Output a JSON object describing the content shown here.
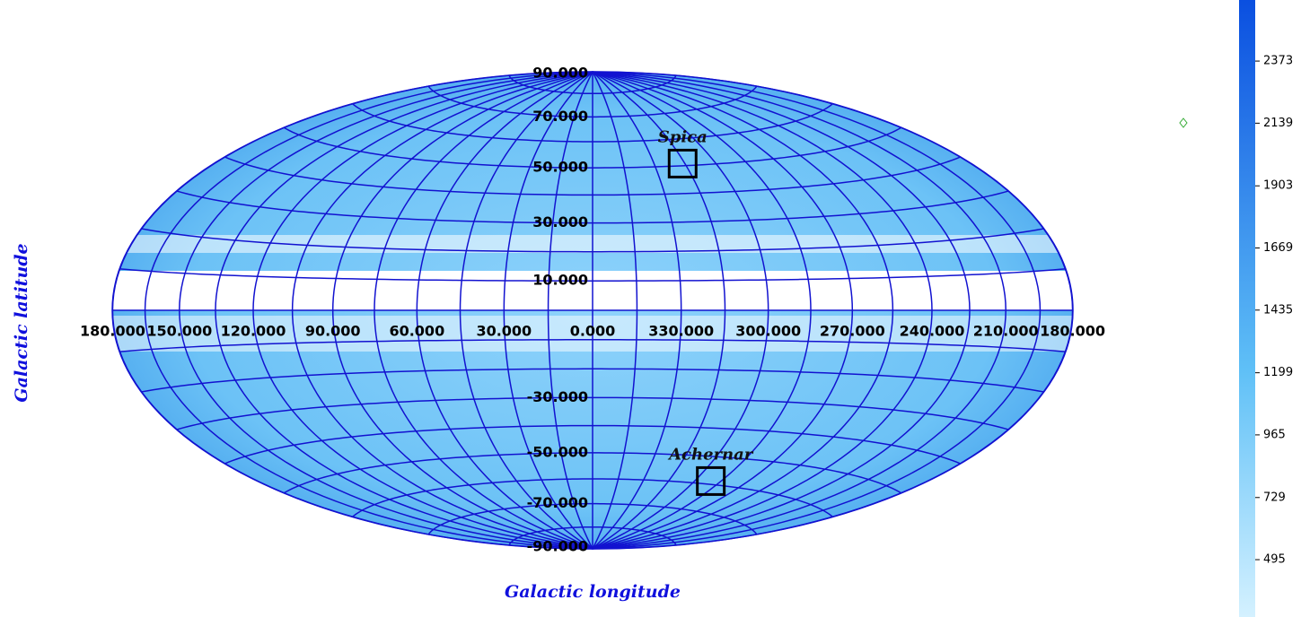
{
  "map": {
    "x_label": "Galactic longitude",
    "y_label": "Galactic latitude",
    "lon_labels": [
      {
        "value": 180,
        "label": "180.000"
      },
      {
        "value": 150,
        "label": "150.000"
      },
      {
        "value": 120,
        "label": "120.000"
      },
      {
        "value": 90,
        "label": "90.000"
      },
      {
        "value": 60,
        "label": "60.000"
      },
      {
        "value": 30,
        "label": "30.000"
      },
      {
        "value": 0,
        "label": "0.000"
      },
      {
        "value": 330,
        "label": "330.000"
      },
      {
        "value": 300,
        "label": "300.000"
      },
      {
        "value": 270,
        "label": "270.000"
      },
      {
        "value": 240,
        "label": "240.000"
      },
      {
        "value": 210,
        "label": "210.000"
      },
      {
        "value": 180,
        "label": "180.000"
      }
    ],
    "lat_labels": [
      {
        "value": 90,
        "label": "90.000"
      },
      {
        "value": 70,
        "label": "70.000"
      },
      {
        "value": 50,
        "label": "50.000"
      },
      {
        "value": 30,
        "label": "30.000"
      },
      {
        "value": 10,
        "label": "10.000"
      },
      {
        "value": -30,
        "label": "-30.000"
      },
      {
        "value": -50,
        "label": "-50.000"
      },
      {
        "value": -70,
        "label": "-70.000"
      },
      {
        "value": -90,
        "label": "-90.000"
      }
    ],
    "markers": [
      {
        "name": "Spica",
        "l": 316.1,
        "b": 50.8
      },
      {
        "name": "Achernar",
        "l": 290.8,
        "b": -58.8
      }
    ],
    "colorbar": {
      "range": [
        279,
        2603
      ],
      "ticks": [
        495,
        729,
        965,
        1199,
        1435,
        1669,
        1903,
        2139,
        2373
      ]
    }
  }
}
